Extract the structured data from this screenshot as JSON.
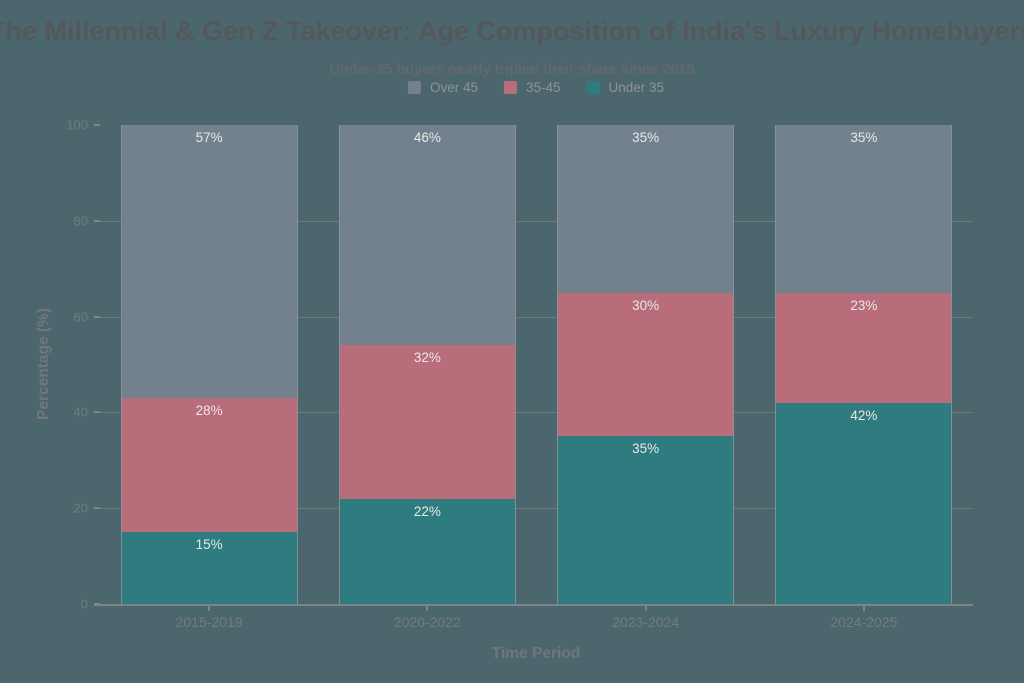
{
  "chart_data": {
    "type": "bar",
    "stacked": true,
    "title": "The Millennial & Gen Z Takeover: Age Composition of India's Luxury Homebuyers",
    "subtitle": "Under-35 buyers nearly tripled their share since 2015",
    "xlabel": "Time Period",
    "ylabel": "Percentage (%)",
    "categories": [
      "2015-2019",
      "2020-2022",
      "2023-2024",
      "2024-2025"
    ],
    "series": [
      {
        "name": "Under 35",
        "color": "#2E7B80",
        "values": [
          15,
          22,
          35,
          42
        ]
      },
      {
        "name": "35-45",
        "color": "#B96C7A",
        "values": [
          28,
          32,
          30,
          23
        ]
      },
      {
        "name": "Over 45",
        "color": "#73808E",
        "values": [
          57,
          46,
          35,
          35
        ]
      }
    ],
    "value_suffix": "%",
    "ylim": [
      0,
      100
    ],
    "yticks": [
      0,
      20,
      40,
      60,
      80,
      100
    ],
    "grid": true,
    "legend_position": "top-center",
    "legend_labels": [
      "Over 45",
      "35-45",
      "Under 35"
    ]
  },
  "colors": {
    "background": "#4C666E",
    "title_text": "#54585A",
    "subtitle_text": "#61696D",
    "legend_text": "#8D9497",
    "tick_label_text": "#747B7E",
    "axis_title_text": "#6E787C",
    "gridline": "#70797D",
    "axis_line": "#7E8589",
    "data_label_text": "#E9E9E5",
    "bar_edge": "#8C9499",
    "series_under_35": "#2E7B80",
    "series_35_45": "#B96C7A",
    "series_over_45": "#73808E"
  }
}
